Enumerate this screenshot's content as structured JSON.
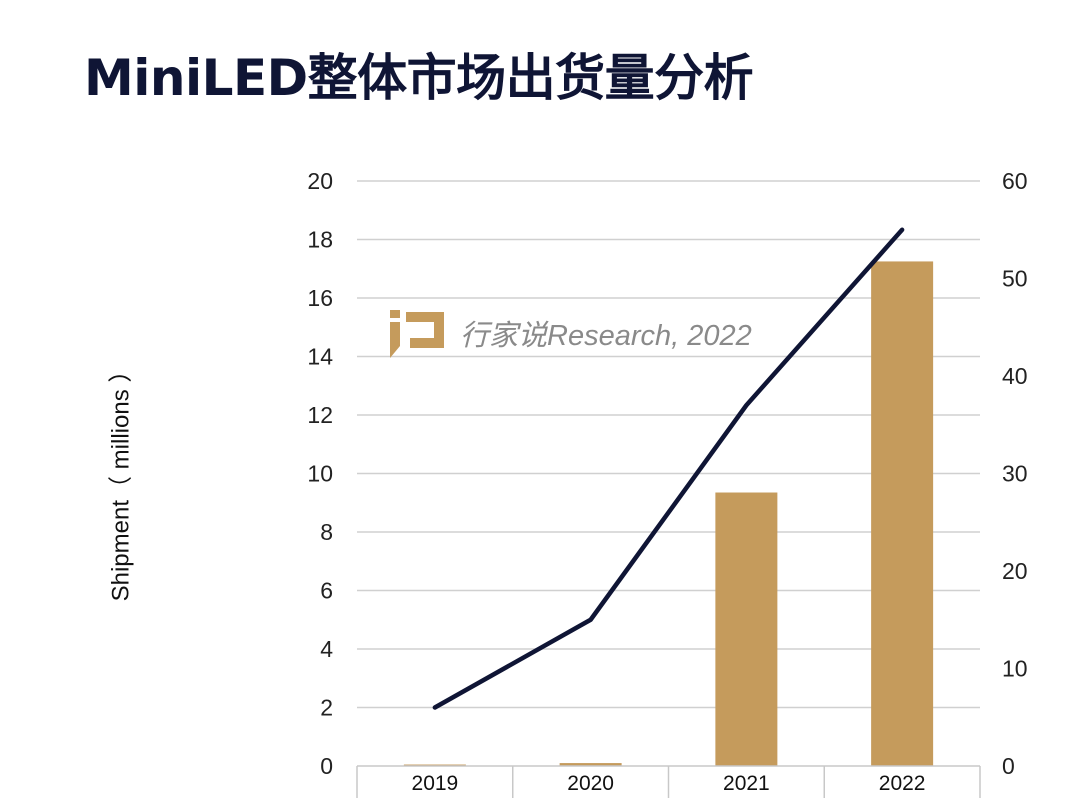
{
  "title": "MiniLED整体市场出货量分析",
  "watermark": "行家说Research, 2022",
  "colors": {
    "bar": "#c59b5c",
    "line": "#0f1535",
    "grid": "#d0d0d0"
  },
  "chart_data": {
    "type": "bar",
    "title": "",
    "categories": [
      "2019",
      "2020",
      "2021",
      "2022"
    ],
    "ylabel": "Shipment（ millions ）",
    "ylim": [
      0,
      20
    ],
    "yticks": [
      0,
      2,
      4,
      6,
      8,
      10,
      12,
      14,
      16,
      18,
      20
    ],
    "y2lim": [
      0,
      60
    ],
    "y2ticks": [
      0,
      10,
      20,
      30,
      40,
      50,
      60
    ],
    "grid": true,
    "series": [
      {
        "type": "bar",
        "axis": "left",
        "values": [
          0.05,
          0.1,
          9.35,
          17.25
        ]
      },
      {
        "type": "line",
        "axis": "right",
        "values": [
          6,
          15,
          37,
          55
        ]
      }
    ]
  }
}
